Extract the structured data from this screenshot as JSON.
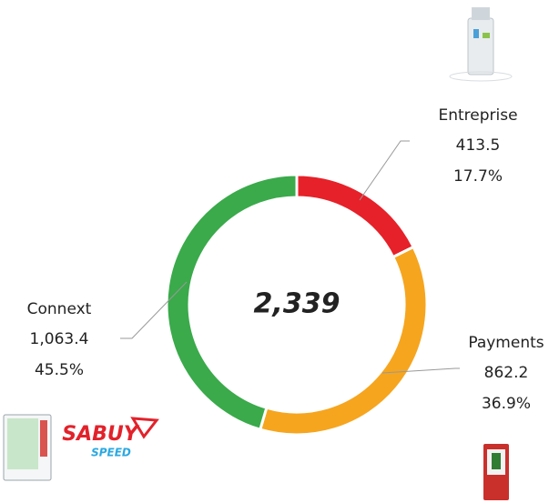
{
  "chart_data": {
    "type": "donut",
    "center_label": "2,339",
    "categories": [
      "Entreprise",
      "Payments",
      "Connext"
    ],
    "values": [
      413.5,
      862.2,
      1063.4
    ],
    "value_labels": [
      "413.5",
      "862.2",
      "1,063.4"
    ],
    "percentage_labels": [
      "17.7%",
      "36.9%",
      "45.5%"
    ],
    "colors": [
      "#e62129",
      "#f6a51e",
      "#3aaa4b"
    ]
  },
  "logo": {
    "brand": "SABUY",
    "tagline": "SPEED"
  }
}
